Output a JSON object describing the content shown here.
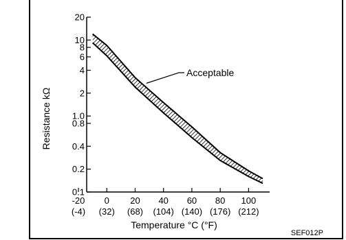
{
  "chart_data": {
    "type": "area",
    "title": "",
    "xlabel": "Temperature °C (°F)",
    "ylabel": "Resistance kΩ",
    "yscale": "log",
    "xlim": [
      -20,
      110
    ],
    "ylim": [
      0.1,
      20
    ],
    "grid": false,
    "x_ticks": [
      -20,
      0,
      20,
      40,
      60,
      80,
      100
    ],
    "x_tick_labels_c": [
      "-20",
      "0",
      "20",
      "40",
      "60",
      "80",
      "100"
    ],
    "x_tick_labels_f": [
      "(-4)",
      "(32)",
      "(68)",
      "(104)",
      "(140)",
      "(176)",
      "(212)"
    ],
    "y_ticks": [
      0.1,
      0.2,
      0.4,
      0.8,
      1.0,
      2,
      4,
      6,
      8,
      10,
      20
    ],
    "y_tick_labels": [
      "0.1",
      "0.2",
      "0.4",
      "0.8",
      "1.0",
      "2",
      "4",
      "6",
      "8",
      "10",
      "20"
    ],
    "series": [
      {
        "name": "Acceptable",
        "x": [
          -10,
          0,
          20,
          40,
          60,
          80,
          100,
          110
        ],
        "upper": [
          12,
          8.5,
          3.2,
          1.5,
          0.72,
          0.33,
          0.19,
          0.15
        ],
        "lower": [
          9.2,
          6.2,
          2.4,
          1.1,
          0.52,
          0.26,
          0.16,
          0.13
        ]
      }
    ],
    "annotations": [
      {
        "text": "Acceptable",
        "x": 28,
        "y": 2.7
      }
    ]
  },
  "figure_code": "SEF012P"
}
